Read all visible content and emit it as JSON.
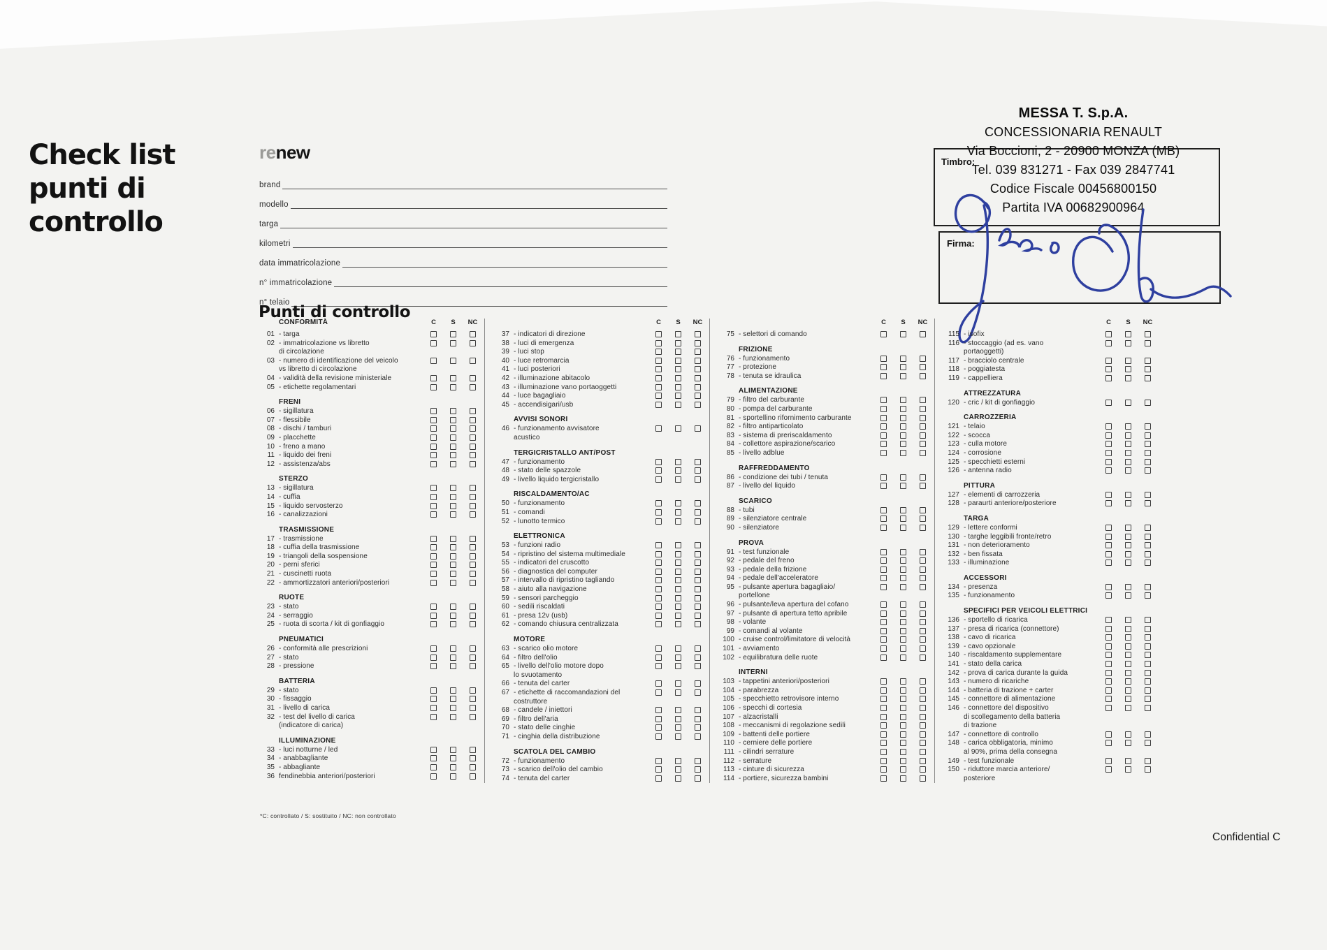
{
  "page": {
    "title": "Check list\npunti di\ncontrollo",
    "section_title": "Punti di controllo",
    "checkbox_headers": [
      "C",
      "S",
      "NC"
    ],
    "form_fields": [
      "brand",
      "modello",
      "targa",
      "kilometri",
      "data immatricolazione",
      "n° immatricolazione",
      "n° telaio"
    ],
    "footnote": "*C: controllato / S: sostituito / NC: non controllato",
    "confidential": "Confidential C"
  },
  "logo": {
    "re": "re",
    "new": "new"
  },
  "stamp": {
    "label": "Timbro:",
    "signature_label": "Firma:",
    "signature_color": "#2e3f9f",
    "lines": [
      "MESSA T. S.p.A.",
      "CONCESSIONARIA RENAULT",
      "Via Boccioni, 2 - 20900 MONZA (MB)",
      "Tel. 039 831271 - Fax 039 2847741",
      "Codice Fiscale 00456800150",
      "Partita IVA 00682900964"
    ]
  },
  "columns": [
    {
      "header_title": "CONFORMITÀ",
      "sections": [
        {
          "title": null,
          "items": [
            [
              "01",
              "- targa"
            ],
            [
              "02",
              "- immatricolazione vs libretto\ndi circolazione"
            ],
            [
              "03",
              "- numero di identificazione del veicolo\nvs libretto di circolazione"
            ],
            [
              "04",
              "- validità della revisione ministeriale"
            ],
            [
              "05",
              "- etichette regolamentari"
            ]
          ]
        },
        {
          "title": "FRENI",
          "items": [
            [
              "06",
              "- sigillatura"
            ],
            [
              "07",
              "- flessibile"
            ],
            [
              "08",
              "- dischi / tamburi"
            ],
            [
              "09",
              "- placchette"
            ],
            [
              "10",
              "- freno a mano"
            ],
            [
              "11",
              "- liquido dei freni"
            ],
            [
              "12",
              "- assistenza/abs"
            ]
          ]
        },
        {
          "title": "STERZO",
          "items": [
            [
              "13",
              "- sigillatura"
            ],
            [
              "14",
              "- cuffia"
            ],
            [
              "15",
              "- liquido servosterzo"
            ],
            [
              "16",
              "- canalizzazioni"
            ]
          ]
        },
        {
          "title": "TRASMISSIONE",
          "items": [
            [
              "17",
              "- trasmissione"
            ],
            [
              "18",
              "- cuffia della trasmissione"
            ],
            [
              "19",
              "- triangoli della sospensione"
            ],
            [
              "20",
              "- perni sferici"
            ],
            [
              "21",
              "- cuscinetti ruota"
            ],
            [
              "22",
              "- ammortizzatori anteriori/posteriori"
            ]
          ]
        },
        {
          "title": "RUOTE",
          "items": [
            [
              "23",
              "- stato"
            ],
            [
              "24",
              "- serraggio"
            ],
            [
              "25",
              "- ruota di scorta / kit di gonfiaggio"
            ]
          ]
        },
        {
          "title": "PNEUMATICI",
          "items": [
            [
              "26",
              "- conformità alle prescrizioni"
            ],
            [
              "27",
              "- stato"
            ],
            [
              "28",
              "- pressione"
            ]
          ]
        },
        {
          "title": "BATTERIA",
          "items": [
            [
              "29",
              "- stato"
            ],
            [
              "30",
              "- fissaggio"
            ],
            [
              "31",
              "- livello di carica"
            ],
            [
              "32",
              "- test del livello di carica\n(indicatore di carica)"
            ]
          ]
        },
        {
          "title": "ILLUMINAZIONE",
          "items": [
            [
              "33",
              "- luci notturne / led"
            ],
            [
              "34",
              "- anabbagliante"
            ],
            [
              "35",
              "- abbagliante"
            ],
            [
              "36",
              "fendinebbia anteriori/posteriori"
            ]
          ]
        }
      ]
    },
    {
      "header_title": "",
      "sections": [
        {
          "title": null,
          "items": [
            [
              "37",
              "- indicatori di direzione"
            ],
            [
              "38",
              "- luci di emergenza"
            ],
            [
              "39",
              "- luci stop"
            ],
            [
              "40",
              "- luce retromarcia"
            ],
            [
              "41",
              "- luci posteriori"
            ],
            [
              "42",
              "- illuminazione abitacolo"
            ],
            [
              "43",
              "- illuminazione vano portaoggetti"
            ],
            [
              "44",
              "- luce bagagliaio"
            ],
            [
              "45",
              "- accendisigari/usb"
            ]
          ]
        },
        {
          "title": "AVVISI SONORI",
          "items": [
            [
              "46",
              "- funzionamento avvisatore\nacustico"
            ]
          ]
        },
        {
          "title": "TERGICRISTALLO ANT/POST",
          "items": [
            [
              "47",
              "- funzionamento"
            ],
            [
              "48",
              "- stato delle spazzole"
            ],
            [
              "49",
              "- livello liquido tergicristallo"
            ]
          ]
        },
        {
          "title": "RISCALDAMENTO/AC",
          "items": [
            [
              "50",
              "- funzionamento"
            ],
            [
              "51",
              "- comandi"
            ],
            [
              "52",
              "- lunotto termico"
            ]
          ]
        },
        {
          "title": "ELETTRONICA",
          "items": [
            [
              "53",
              "- funzioni radio"
            ],
            [
              "54",
              "- ripristino del sistema multimediale"
            ],
            [
              "55",
              "- indicatori del cruscotto"
            ],
            [
              "56",
              "- diagnostica del computer"
            ],
            [
              "57",
              "- intervallo di ripristino tagliando"
            ],
            [
              "58",
              "- aiuto alla navigazione"
            ],
            [
              "59",
              "- sensori parcheggio"
            ],
            [
              "60",
              "- sedili riscaldati"
            ],
            [
              "61",
              "- presa 12v (usb)"
            ],
            [
              "62",
              "- comando chiusura centralizzata"
            ]
          ]
        },
        {
          "title": "MOTORE",
          "items": [
            [
              "63",
              "- scarico olio motore"
            ],
            [
              "64",
              "- filtro dell'olio"
            ],
            [
              "65",
              "- livello dell'olio motore dopo\nlo svuotamento"
            ],
            [
              "66",
              "- tenuta del carter"
            ],
            [
              "67",
              "- etichette di raccomandazioni del\ncostruttore"
            ],
            [
              "68",
              "- candele / iniettori"
            ],
            [
              "69",
              "- filtro dell'aria"
            ],
            [
              "70",
              "- stato delle cinghie"
            ],
            [
              "71",
              "- cinghia della distribuzione"
            ]
          ]
        },
        {
          "title": "SCATOLA DEL CAMBIO",
          "items": [
            [
              "72",
              "- funzionamento"
            ],
            [
              "73",
              "- scarico dell'olio del cambio"
            ],
            [
              "74",
              "- tenuta del carter"
            ]
          ]
        }
      ]
    },
    {
      "header_title": "",
      "sections": [
        {
          "title": null,
          "items": [
            [
              "75",
              "- selettori di comando"
            ]
          ]
        },
        {
          "title": "FRIZIONE",
          "items": [
            [
              "76",
              "- funzionamento"
            ],
            [
              "77",
              "- protezione"
            ],
            [
              "78",
              "- tenuta se idraulica"
            ]
          ]
        },
        {
          "title": "ALIMENTAZIONE",
          "items": [
            [
              "79",
              "- filtro del carburante"
            ],
            [
              "80",
              "- pompa del carburante"
            ],
            [
              "81",
              "- sportellino rifornimento carburante"
            ],
            [
              "82",
              "- filtro antiparticolato"
            ],
            [
              "83",
              "- sistema di preriscaldamento"
            ],
            [
              "84",
              "- collettore aspirazione/scarico"
            ],
            [
              "85",
              "- livello adblue"
            ]
          ]
        },
        {
          "title": "RAFFREDDAMENTO",
          "items": [
            [
              "86",
              "- condizione dei tubi / tenuta"
            ],
            [
              "87",
              "- livello del liquido"
            ]
          ]
        },
        {
          "title": "SCARICO",
          "items": [
            [
              "88",
              "- tubi"
            ],
            [
              "89",
              "- silenziatore centrale"
            ],
            [
              "90",
              "- silenziatore"
            ]
          ]
        },
        {
          "title": "PROVA",
          "items": [
            [
              "91",
              "- test funzionale"
            ],
            [
              "92",
              "- pedale del freno"
            ],
            [
              "93",
              "- pedale della frizione"
            ],
            [
              "94",
              "- pedale dell'acceleratore"
            ],
            [
              "95",
              "- pulsante apertura bagagliaio/\nportellone"
            ],
            [
              "96",
              "- pulsante/leva apertura del cofano"
            ],
            [
              "97",
              "- pulsante di apertura tetto apribile"
            ],
            [
              "98",
              "- volante"
            ],
            [
              "99",
              "- comandi al volante"
            ],
            [
              "100",
              "- cruise control/limitatore di velocità"
            ],
            [
              "101",
              "- avviamento"
            ],
            [
              "102",
              "- equilibratura delle ruote"
            ]
          ]
        },
        {
          "title": "INTERNI",
          "items": [
            [
              "103",
              "- tappetini anteriori/posteriori"
            ],
            [
              "104",
              "- parabrezza"
            ],
            [
              "105",
              "- specchietto retrovisore interno"
            ],
            [
              "106",
              "- specchi di cortesia"
            ],
            [
              "107",
              "- alzacristalli"
            ],
            [
              "108",
              "- meccanismi di regolazione sedili"
            ],
            [
              "109",
              "- battenti delle portiere"
            ],
            [
              "110",
              "- cerniere delle portiere"
            ],
            [
              "111",
              "- cilindri serrature"
            ],
            [
              "112",
              "- serrature"
            ],
            [
              "113",
              "- cinture di sicurezza"
            ],
            [
              "114",
              "- portiere, sicurezza bambini"
            ]
          ]
        }
      ]
    },
    {
      "header_title": "",
      "sections": [
        {
          "title": null,
          "items": [
            [
              "115",
              "- isofix"
            ],
            [
              "116",
              "- stoccaggio (ad es. vano\nportaoggetti)"
            ],
            [
              "117",
              "- bracciolo centrale"
            ],
            [
              "118",
              "- poggiatesta"
            ],
            [
              "119",
              "- cappelliera"
            ]
          ]
        },
        {
          "title": "ATTREZZATURA",
          "items": [
            [
              "120",
              "- cric / kit di gonfiaggio"
            ]
          ]
        },
        {
          "title": "CARROZZERIA",
          "items": [
            [
              "121",
              "- telaio"
            ],
            [
              "122",
              "- scocca"
            ],
            [
              "123",
              "- culla motore"
            ],
            [
              "124",
              "- corrosione"
            ],
            [
              "125",
              "- specchietti esterni"
            ],
            [
              "126",
              "- antenna radio"
            ]
          ]
        },
        {
          "title": "PITTURA",
          "items": [
            [
              "127",
              "- elementi di carrozzeria"
            ],
            [
              "128",
              "- paraurti anteriore/posteriore"
            ]
          ]
        },
        {
          "title": "TARGA",
          "items": [
            [
              "129",
              "- lettere conformi"
            ],
            [
              "130",
              "- targhe leggibili fronte/retro"
            ],
            [
              "131",
              "- non deterioramento"
            ],
            [
              "132",
              "- ben fissata"
            ],
            [
              "133",
              "- illuminazione"
            ]
          ]
        },
        {
          "title": "ACCESSORI",
          "items": [
            [
              "134",
              "- presenza"
            ],
            [
              "135",
              "- funzionamento"
            ]
          ]
        },
        {
          "title": "SPECIFICI PER VEICOLI ELETTRICI",
          "items": [
            [
              "136",
              "- sportello di ricarica"
            ],
            [
              "137",
              "- presa di ricarica (connettore)"
            ],
            [
              "138",
              "- cavo di ricarica"
            ],
            [
              "139",
              "- cavo opzionale"
            ],
            [
              "140",
              "- riscaldamento supplementare"
            ],
            [
              "141",
              "- stato della carica"
            ],
            [
              "142",
              "- prova di carica durante la guida"
            ],
            [
              "143",
              "- numero di ricariche"
            ],
            [
              "144",
              "- batteria di trazione + carter"
            ],
            [
              "145",
              "- connettore di alimentazione"
            ],
            [
              "146",
              "- connettore del dispositivo\ndi scollegamento della batteria\ndi trazione"
            ],
            [
              "147",
              "- connettore di controllo"
            ],
            [
              "148",
              "- carica obbligatoria, minimo\nal 90%, prima della consegna"
            ],
            [
              "149",
              "- test funzionale"
            ],
            [
              "150",
              "- riduttore marcia anteriore/\nposteriore"
            ]
          ]
        }
      ]
    }
  ]
}
